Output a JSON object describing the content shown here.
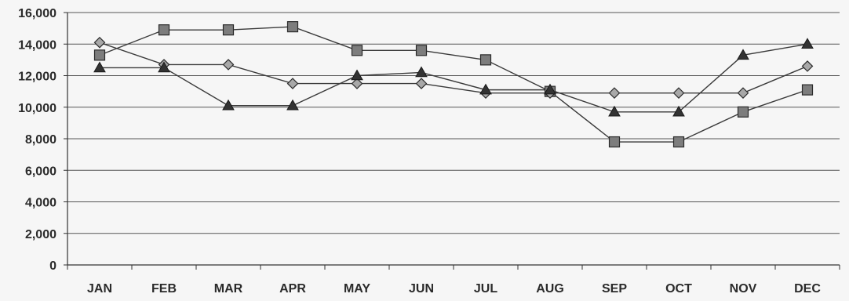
{
  "chart_data": {
    "type": "line",
    "title": "",
    "xlabel": "",
    "ylabel": "",
    "categories": [
      "JAN",
      "FEB",
      "MAR",
      "APR",
      "MAY",
      "JUN",
      "JUL",
      "AUG",
      "SEP",
      "OCT",
      "NOV",
      "DEC"
    ],
    "ylim": [
      0,
      16000
    ],
    "yticks": [
      0,
      2000,
      4000,
      6000,
      8000,
      10000,
      12000,
      14000,
      16000
    ],
    "ytick_labels": [
      "0",
      "2,000",
      "4,000",
      "6,000",
      "8,000",
      "10,000",
      "12,000",
      "14,000",
      "16,000"
    ],
    "grid": true,
    "legend": "none",
    "series": [
      {
        "marker": "square",
        "color": "#7d7d7d",
        "values": [
          13300,
          14900,
          14900,
          15100,
          13600,
          13600,
          13000,
          11000,
          7800,
          7800,
          9700,
          11100
        ]
      },
      {
        "marker": "diamond",
        "color": "#a8a8a8",
        "values": [
          14100,
          12700,
          12700,
          11500,
          11500,
          11500,
          10900,
          10900,
          10900,
          10900,
          10900,
          12600
        ]
      },
      {
        "marker": "triangle",
        "color": "#333333",
        "values": [
          12500,
          12500,
          10100,
          10100,
          12000,
          12200,
          11100,
          11100,
          9700,
          9700,
          13300,
          14000
        ]
      }
    ]
  }
}
